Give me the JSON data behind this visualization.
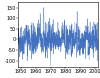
{
  "title": "",
  "ylabel": "",
  "xlabel": "",
  "xlim": [
    1948,
    2002
  ],
  "ylim": [
    -130,
    175
  ],
  "yticks": [
    -100,
    -50,
    0,
    50,
    100,
    150
  ],
  "xticks": [
    1950,
    1960,
    1970,
    1980,
    1990,
    2000
  ],
  "xtick_labels": [
    "1950",
    "1960",
    "1970",
    "1980",
    "1990",
    "2000"
  ],
  "ytick_labels": [
    "-100",
    "-50",
    "0",
    "50",
    "100",
    "150"
  ],
  "line_color": "#3366bb",
  "fill_color": "#aabbdd",
  "background_color": "#ffffff",
  "n_points": 648,
  "seed": 42,
  "std": 40,
  "tick_fontsize": 3.5
}
